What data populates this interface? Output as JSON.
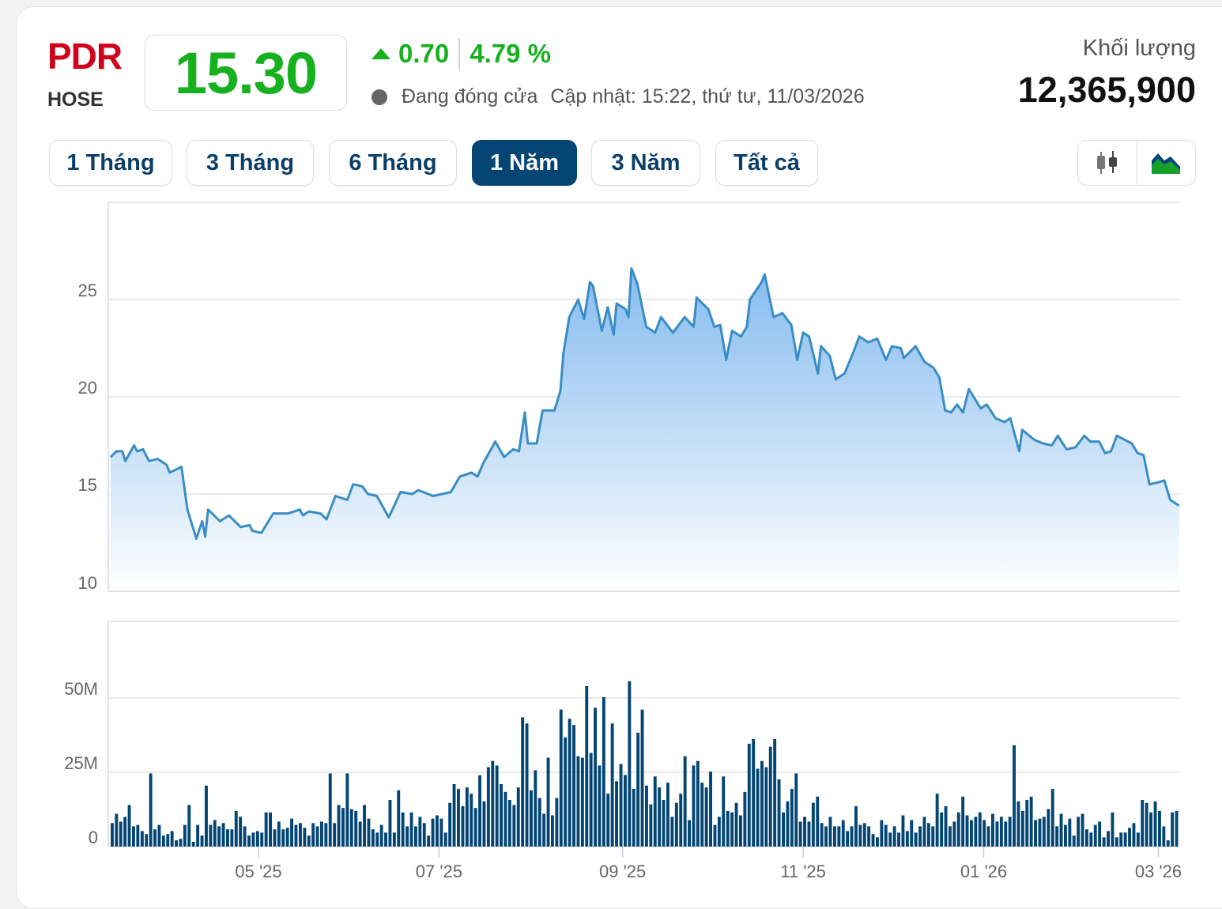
{
  "header": {
    "symbol": "PDR",
    "exchange": "HOSE",
    "price": "15.30",
    "change": "0.70",
    "change_percent": "4.79 %",
    "direction": "up",
    "status": "Đang đóng cửa",
    "updated": "Cập nhật: 15:22, thứ tư, 11/03/2026",
    "volume_label": "Khối lượng",
    "volume_value": "12,365,900"
  },
  "colors": {
    "symbol": "#d0021b",
    "up": "#17b01f",
    "accent": "#054574",
    "line": "#3a8dc4",
    "volume_bar": "#034573"
  },
  "ranges": [
    {
      "label": "1 Tháng",
      "active": false
    },
    {
      "label": "3 Tháng",
      "active": false
    },
    {
      "label": "6 Tháng",
      "active": false
    },
    {
      "label": "1 Năm",
      "active": true
    },
    {
      "label": "3 Năm",
      "active": false
    },
    {
      "label": "Tất cả",
      "active": false
    }
  ],
  "chart_types": [
    {
      "icon": "candlestick-icon",
      "active": false
    },
    {
      "icon": "area-chart-icon",
      "active": true
    }
  ],
  "chart_data": [
    {
      "type": "area",
      "ylim": [
        10,
        30
      ],
      "yticks": [
        "10",
        "15",
        "20",
        "25"
      ],
      "xticks": [
        {
          "label": "05 '25",
          "date": "2025-05-01"
        },
        {
          "label": "07 '25",
          "date": "2025-07-01"
        },
        {
          "label": "09 '25",
          "date": "2025-09-01"
        },
        {
          "label": "11 '25",
          "date": "2025-11-01"
        },
        {
          "label": "01 '26",
          "date": "2026-01-01"
        },
        {
          "label": "03 '26",
          "date": "2026-03-01"
        }
      ],
      "grid": true,
      "points": [
        [
          "2025-03-12",
          16.9
        ],
        [
          "2025-03-14",
          17.2
        ],
        [
          "2025-03-16",
          17.2
        ],
        [
          "2025-03-17",
          16.7
        ],
        [
          "2025-03-20",
          17.5
        ],
        [
          "2025-03-21",
          17.2
        ],
        [
          "2025-03-23",
          17.3
        ],
        [
          "2025-03-25",
          16.7
        ],
        [
          "2025-03-28",
          16.8
        ],
        [
          "2025-03-31",
          16.5
        ],
        [
          "2025-04-01",
          16.1
        ],
        [
          "2025-04-05",
          16.4
        ],
        [
          "2025-04-07",
          14.2
        ],
        [
          "2025-04-10",
          12.7
        ],
        [
          "2025-04-12",
          13.6
        ],
        [
          "2025-04-13",
          12.8
        ],
        [
          "2025-04-14",
          14.2
        ],
        [
          "2025-04-18",
          13.6
        ],
        [
          "2025-04-21",
          13.9
        ],
        [
          "2025-04-25",
          13.3
        ],
        [
          "2025-04-28",
          13.4
        ],
        [
          "2025-04-29",
          13.1
        ],
        [
          "2025-05-02",
          13.0
        ],
        [
          "2025-05-06",
          14.0
        ],
        [
          "2025-05-11",
          14.0
        ],
        [
          "2025-05-15",
          14.2
        ],
        [
          "2025-05-16",
          13.9
        ],
        [
          "2025-05-18",
          14.1
        ],
        [
          "2025-05-22",
          14.0
        ],
        [
          "2025-05-24",
          13.7
        ],
        [
          "2025-05-27",
          14.9
        ],
        [
          "2025-05-31",
          14.7
        ],
        [
          "2025-06-02",
          15.5
        ],
        [
          "2025-06-05",
          15.4
        ],
        [
          "2025-06-07",
          15.0
        ],
        [
          "2025-06-10",
          14.9
        ],
        [
          "2025-06-14",
          13.8
        ],
        [
          "2025-06-18",
          15.1
        ],
        [
          "2025-06-22",
          15.0
        ],
        [
          "2025-06-24",
          15.2
        ],
        [
          "2025-06-29",
          14.9
        ],
        [
          "2025-07-02",
          15.0
        ],
        [
          "2025-07-05",
          15.1
        ],
        [
          "2025-07-08",
          15.9
        ],
        [
          "2025-07-12",
          16.1
        ],
        [
          "2025-07-14",
          15.9
        ],
        [
          "2025-07-16",
          16.6
        ],
        [
          "2025-07-20",
          17.7
        ],
        [
          "2025-07-23",
          16.9
        ],
        [
          "2025-07-26",
          17.3
        ],
        [
          "2025-07-28",
          17.2
        ],
        [
          "2025-07-30",
          19.2
        ],
        [
          "2025-07-31",
          17.6
        ],
        [
          "2025-08-03",
          17.6
        ],
        [
          "2025-08-05",
          19.3
        ],
        [
          "2025-08-09",
          19.3
        ],
        [
          "2025-08-11",
          20.3
        ],
        [
          "2025-08-12",
          22.2
        ],
        [
          "2025-08-14",
          24.1
        ],
        [
          "2025-08-17",
          25.0
        ],
        [
          "2025-08-19",
          24.0
        ],
        [
          "2025-08-21",
          25.9
        ],
        [
          "2025-08-22",
          25.7
        ],
        [
          "2025-08-25",
          23.4
        ],
        [
          "2025-08-27",
          24.6
        ],
        [
          "2025-08-29",
          23.2
        ],
        [
          "2025-08-30",
          24.8
        ],
        [
          "2025-09-02",
          24.5
        ],
        [
          "2025-09-03",
          24.1
        ],
        [
          "2025-09-04",
          26.6
        ],
        [
          "2025-09-06",
          25.8
        ],
        [
          "2025-09-09",
          23.6
        ],
        [
          "2025-09-12",
          23.3
        ],
        [
          "2025-09-14",
          24.1
        ],
        [
          "2025-09-18",
          23.3
        ],
        [
          "2025-09-22",
          24.1
        ],
        [
          "2025-09-25",
          23.6
        ],
        [
          "2025-09-26",
          25.1
        ],
        [
          "2025-09-30",
          24.5
        ],
        [
          "2025-10-02",
          23.6
        ],
        [
          "2025-10-04",
          23.7
        ],
        [
          "2025-10-06",
          21.9
        ],
        [
          "2025-10-08",
          23.4
        ],
        [
          "2025-10-11",
          23.1
        ],
        [
          "2025-10-13",
          23.6
        ],
        [
          "2025-10-14",
          25.0
        ],
        [
          "2025-10-18",
          25.9
        ],
        [
          "2025-10-19",
          26.3
        ],
        [
          "2025-10-22",
          24.1
        ],
        [
          "2025-10-25",
          24.3
        ],
        [
          "2025-10-28",
          23.7
        ],
        [
          "2025-10-30",
          21.9
        ],
        [
          "2025-11-01",
          23.3
        ],
        [
          "2025-11-03",
          23.1
        ],
        [
          "2025-11-06",
          21.2
        ],
        [
          "2025-11-07",
          22.6
        ],
        [
          "2025-11-10",
          22.1
        ],
        [
          "2025-11-12",
          20.9
        ],
        [
          "2025-11-15",
          21.2
        ],
        [
          "2025-11-18",
          22.3
        ],
        [
          "2025-11-20",
          23.1
        ],
        [
          "2025-11-23",
          22.8
        ],
        [
          "2025-11-26",
          23.0
        ],
        [
          "2025-11-29",
          21.9
        ],
        [
          "2025-12-01",
          22.6
        ],
        [
          "2025-12-04",
          22.5
        ],
        [
          "2025-12-05",
          22.0
        ],
        [
          "2025-12-09",
          22.6
        ],
        [
          "2025-12-12",
          21.8
        ],
        [
          "2025-12-15",
          21.5
        ],
        [
          "2025-12-17",
          21.0
        ],
        [
          "2025-12-19",
          19.3
        ],
        [
          "2025-12-21",
          19.2
        ],
        [
          "2025-12-23",
          19.6
        ],
        [
          "2025-12-25",
          19.2
        ],
        [
          "2025-12-27",
          20.4
        ],
        [
          "2025-12-29",
          19.9
        ],
        [
          "2025-12-31",
          19.4
        ],
        [
          "2026-01-02",
          19.6
        ],
        [
          "2026-01-05",
          18.9
        ],
        [
          "2026-01-08",
          18.7
        ],
        [
          "2026-01-10",
          18.9
        ],
        [
          "2026-01-13",
          17.2
        ],
        [
          "2026-01-14",
          18.3
        ],
        [
          "2026-01-18",
          17.8
        ],
        [
          "2026-01-21",
          17.6
        ],
        [
          "2026-01-24",
          17.5
        ],
        [
          "2026-01-26",
          18.0
        ],
        [
          "2026-01-29",
          17.3
        ],
        [
          "2026-02-01",
          17.4
        ],
        [
          "2026-02-04",
          18.0
        ],
        [
          "2026-02-06",
          17.7
        ],
        [
          "2026-02-09",
          17.7
        ],
        [
          "2026-02-11",
          17.1
        ],
        [
          "2026-02-13",
          17.2
        ],
        [
          "2026-02-15",
          18.0
        ],
        [
          "2026-02-20",
          17.6
        ],
        [
          "2026-02-22",
          17.1
        ],
        [
          "2026-02-24",
          17.0
        ],
        [
          "2026-02-26",
          15.5
        ],
        [
          "2026-03-01",
          15.6
        ],
        [
          "2026-03-03",
          15.7
        ],
        [
          "2026-03-05",
          14.7
        ],
        [
          "2026-03-08",
          14.4
        ]
      ]
    },
    {
      "type": "bar",
      "ylim": [
        0,
        75
      ],
      "yticks": [
        "0",
        "25M",
        "50M"
      ],
      "unit": "M",
      "grid": true,
      "values": [
        7.9,
        11,
        8.4,
        10,
        14,
        6.8,
        7.3,
        5.2,
        4.2,
        24.6,
        5.8,
        7.3,
        3.7,
        4.2,
        5.2,
        2.1,
        2.6,
        7.3,
        14,
        1.6,
        7.3,
        3.7,
        20.5,
        7.3,
        8.9,
        6.8,
        7.9,
        5.8,
        5.8,
        12,
        10,
        6.8,
        3.7,
        4.7,
        5.2,
        4.7,
        11.5,
        11.5,
        5.8,
        8.4,
        5.8,
        6.3,
        9.4,
        7.3,
        7.9,
        6.3,
        3.7,
        7.9,
        6.8,
        8.4,
        7.9,
        24.6,
        7.9,
        14,
        13,
        24.6,
        12.6,
        12,
        8.4,
        14,
        9.4,
        5.8,
        4.7,
        7.3,
        4.7,
        15.7,
        4.7,
        18.9,
        11.5,
        6.8,
        11.5,
        6.8,
        10,
        7.9,
        3.7,
        9.4,
        10.5,
        9.4,
        4.7,
        14.7,
        21,
        19.4,
        13.6,
        19.9,
        17.8,
        13,
        24,
        15.2,
        26.7,
        28.8,
        27.3,
        21,
        18.4,
        15.7,
        14,
        19.9,
        43.5,
        41.4,
        18.9,
        25.7,
        16.3,
        11,
        29.9,
        10.5,
        16.3,
        46.1,
        36.7,
        43,
        40.9,
        30.4,
        29.9,
        54,
        31.5,
        46.7,
        27.3,
        50.3,
        17.8,
        41.4,
        22,
        27.8,
        24.1,
        55.6,
        19.4,
        38.3,
        46.1,
        20.5,
        14.2,
        23.6,
        19.9,
        15.7,
        21.5,
        10,
        14.7,
        17.8,
        30.4,
        8.9,
        27.3,
        28.8,
        21.5,
        19.9,
        25.2,
        7.3,
        10,
        23.6,
        12,
        11.5,
        14.7,
        10.5,
        18.4,
        34.6,
        36.2,
        26.2,
        28.8,
        26.7,
        33.6,
        36.2,
        22.6,
        11.5,
        15.2,
        19.4,
        24.6,
        8.4,
        10,
        8.4,
        14.7,
        16.8,
        7.9,
        6.8,
        10,
        6.8,
        6.8,
        8.9,
        5.2,
        6.8,
        13.6,
        7.3,
        7.9,
        6.8,
        4.2,
        3.1,
        8.9,
        7.3,
        4.7,
        6.8,
        4.7,
        10.5,
        5.2,
        8.9,
        4.7,
        6.8,
        10,
        7.9,
        6.8,
        17.8,
        11.5,
        13.6,
        6.8,
        8.4,
        11.5,
        16.8,
        10.5,
        8.9,
        10,
        11.5,
        8.9,
        6.8,
        11,
        8.4,
        10,
        8.4,
        10,
        34.1,
        15.2,
        12,
        15.7,
        16.8,
        8.9,
        9.4,
        10,
        12.6,
        19.4,
        6.8,
        11,
        7.3,
        9.4,
        3.7,
        10,
        11,
        5.8,
        4.7,
        7.3,
        8.4,
        3.1,
        5.2,
        11.5,
        3.1,
        4.7,
        4.7,
        6.3,
        7.9,
        4.7,
        15.7,
        14.7,
        11.5,
        15.2,
        12,
        6.8,
        2.1,
        11.5,
        12
      ]
    }
  ]
}
